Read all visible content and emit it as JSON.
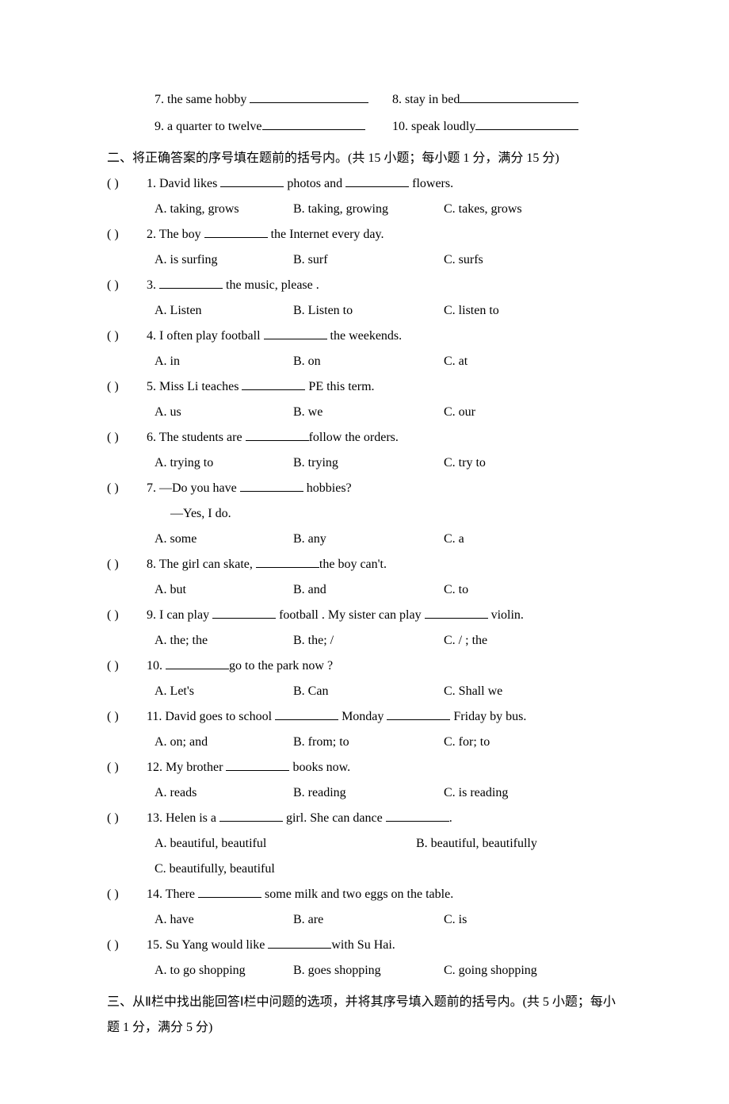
{
  "top": {
    "item7": "7. the same hobby ",
    "item8": " 8. stay in bed",
    "item9": "9. a quarter to twelve",
    "item10": " 10. speak loudly"
  },
  "section2": {
    "heading": "二、将正确答案的序号填在题前的括号内。(共 15 小题；每小题 1 分，满分 15 分)",
    "paren": "(        )",
    "questions": [
      {
        "num": "1.",
        "stem_a": " David likes ",
        "stem_b": " photos and ",
        "stem_c": " flowers.",
        "opts": {
          "a": "A. taking, grows",
          "b": "B. taking, growing",
          "c": "C. takes, grows"
        }
      },
      {
        "num": "2.",
        "stem_a": " The boy ",
        "stem_b": " the Internet every day.",
        "opts": {
          "a": "A. is surfing",
          "b": "B. surf",
          "c": "C. surfs"
        }
      },
      {
        "num": "3.",
        "stem_a": " ",
        "stem_b": " the music, please .",
        "opts": {
          "a": "A. Listen",
          "b": "B. Listen to",
          "c": "C. listen to"
        }
      },
      {
        "num": "4.",
        "stem_a": " I often play football ",
        "stem_b": " the weekends.",
        "opts": {
          "a": "A. in",
          "b": "B. on",
          "c": "C. at"
        }
      },
      {
        "num": "5.",
        "stem_a": " Miss Li teaches ",
        "stem_b": " PE this term.",
        "opts": {
          "a": "A. us",
          "b": "B. we",
          "c": "C. our"
        }
      },
      {
        "num": "6.",
        "stem_a": " The students are ",
        "stem_b": "follow the orders.",
        "opts": {
          "a": "A. trying to",
          "b": "B. trying",
          "c": "C. try to"
        }
      },
      {
        "num": "7.",
        "stem_a": " —Do you have ",
        "stem_b": " hobbies?",
        "yes": "—Yes, I do.",
        "opts": {
          "a": "A. some",
          "b": "B. any",
          "c": "C. a"
        }
      },
      {
        "num": "8.",
        "stem_a": " The girl can skate, ",
        "stem_b": "the boy can't.",
        "opts": {
          "a": "A. but",
          "b": "B. and",
          "c": "C. to"
        }
      },
      {
        "num": "9.",
        "stem_a": " I can play ",
        "stem_b": " football . My sister can play ",
        "stem_c": " violin.",
        "opts": {
          "a": "A. the; the",
          "b": "B. the; /",
          "c": "C. / ; the"
        }
      },
      {
        "num": "10.",
        "stem_a": " ",
        "stem_b": "go to the park now ?",
        "opts": {
          "a": "A. Let's",
          "b": "B. Can",
          "c": "C. Shall we"
        }
      },
      {
        "num": "11.",
        "stem_a": " David goes to school ",
        "stem_b": " Monday ",
        "stem_c": " Friday by bus.",
        "opts": {
          "a": "A. on; and",
          "b": "B. from; to",
          "c": "C. for; to"
        }
      },
      {
        "num": "12.",
        "stem_a": " My brother ",
        "stem_b": " books now.",
        "opts": {
          "a": "A. reads",
          "b": "B. reading",
          "c": "C. is reading"
        }
      },
      {
        "num": "13.",
        "stem_a": " Helen is a ",
        "stem_b": " girl. She can dance ",
        "stem_c": ".",
        "opts": {
          "a": "A. beautiful, beautiful",
          "b": "B. beautiful, beautifully",
          "c": "C. beautifully, beautiful"
        },
        "wideAB": true
      },
      {
        "num": "14.",
        "stem_a": " There ",
        "stem_b": " some milk and two eggs on the table.",
        "opts": {
          "a": "A. have",
          "b": "B. are",
          "c": "C.  is"
        }
      },
      {
        "num": "15.",
        "stem_a": " Su Yang would like ",
        "stem_b": "with Su Hai.",
        "opts": {
          "a": "A. to go shopping",
          "b": "B. goes shopping",
          "c": "C. going shopping"
        }
      }
    ]
  },
  "section3": {
    "heading": "三、从Ⅱ栏中找出能回答Ⅰ栏中问题的选项，并将其序号填入题前的括号内。(共 5 小题；每小题 1 分，满分 5 分)"
  }
}
